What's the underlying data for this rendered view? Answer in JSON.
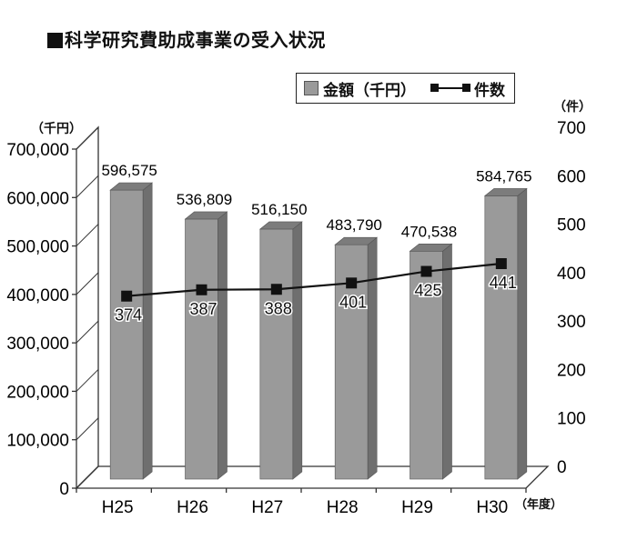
{
  "title": "科学研究費助成事業の受入状況",
  "legend": {
    "bar_label": "金額（千円）",
    "line_label": "件数"
  },
  "left_unit": "（千円）",
  "right_unit": "（件）",
  "x_unit": "（年度）",
  "colors": {
    "bar_front": "#9a9a9a",
    "bar_side": "#6f6f6f",
    "bar_top": "#7c7c7c",
    "line": "#111111",
    "axis": "#333333"
  },
  "chart_data": {
    "type": "bar",
    "categories": [
      "H25",
      "H26",
      "H27",
      "H28",
      "H29",
      "H30"
    ],
    "series": [
      {
        "name": "金額（千円）",
        "type": "bar",
        "axis": "left",
        "values": [
          596575,
          536809,
          516150,
          483790,
          470538,
          584765
        ],
        "labels": [
          "596,575",
          "536,809",
          "516,150",
          "483,790",
          "470,538",
          "584,765"
        ]
      },
      {
        "name": "件数",
        "type": "line",
        "axis": "right",
        "values": [
          374,
          387,
          388,
          401,
          425,
          441
        ],
        "labels": [
          "374",
          "387",
          "388",
          "401",
          "425",
          "441"
        ]
      }
    ],
    "left_axis": {
      "ylim": [
        0,
        700000
      ],
      "ticks": [
        0,
        100000,
        200000,
        300000,
        400000,
        500000,
        600000,
        700000
      ],
      "tick_labels": [
        "0",
        "100,000",
        "200,000",
        "300,000",
        "400,000",
        "500,000",
        "600,000",
        "700,000"
      ],
      "unit": "（千円）"
    },
    "right_axis": {
      "ylim": [
        0,
        700
      ],
      "ticks": [
        0,
        100,
        200,
        300,
        400,
        500,
        600,
        700
      ],
      "tick_labels": [
        "0",
        "100",
        "200",
        "300",
        "400",
        "500",
        "600",
        "700"
      ],
      "unit": "（件）"
    },
    "xlabel": "（年度）",
    "grid": false,
    "three_d": true,
    "legend_position": "top-right"
  }
}
